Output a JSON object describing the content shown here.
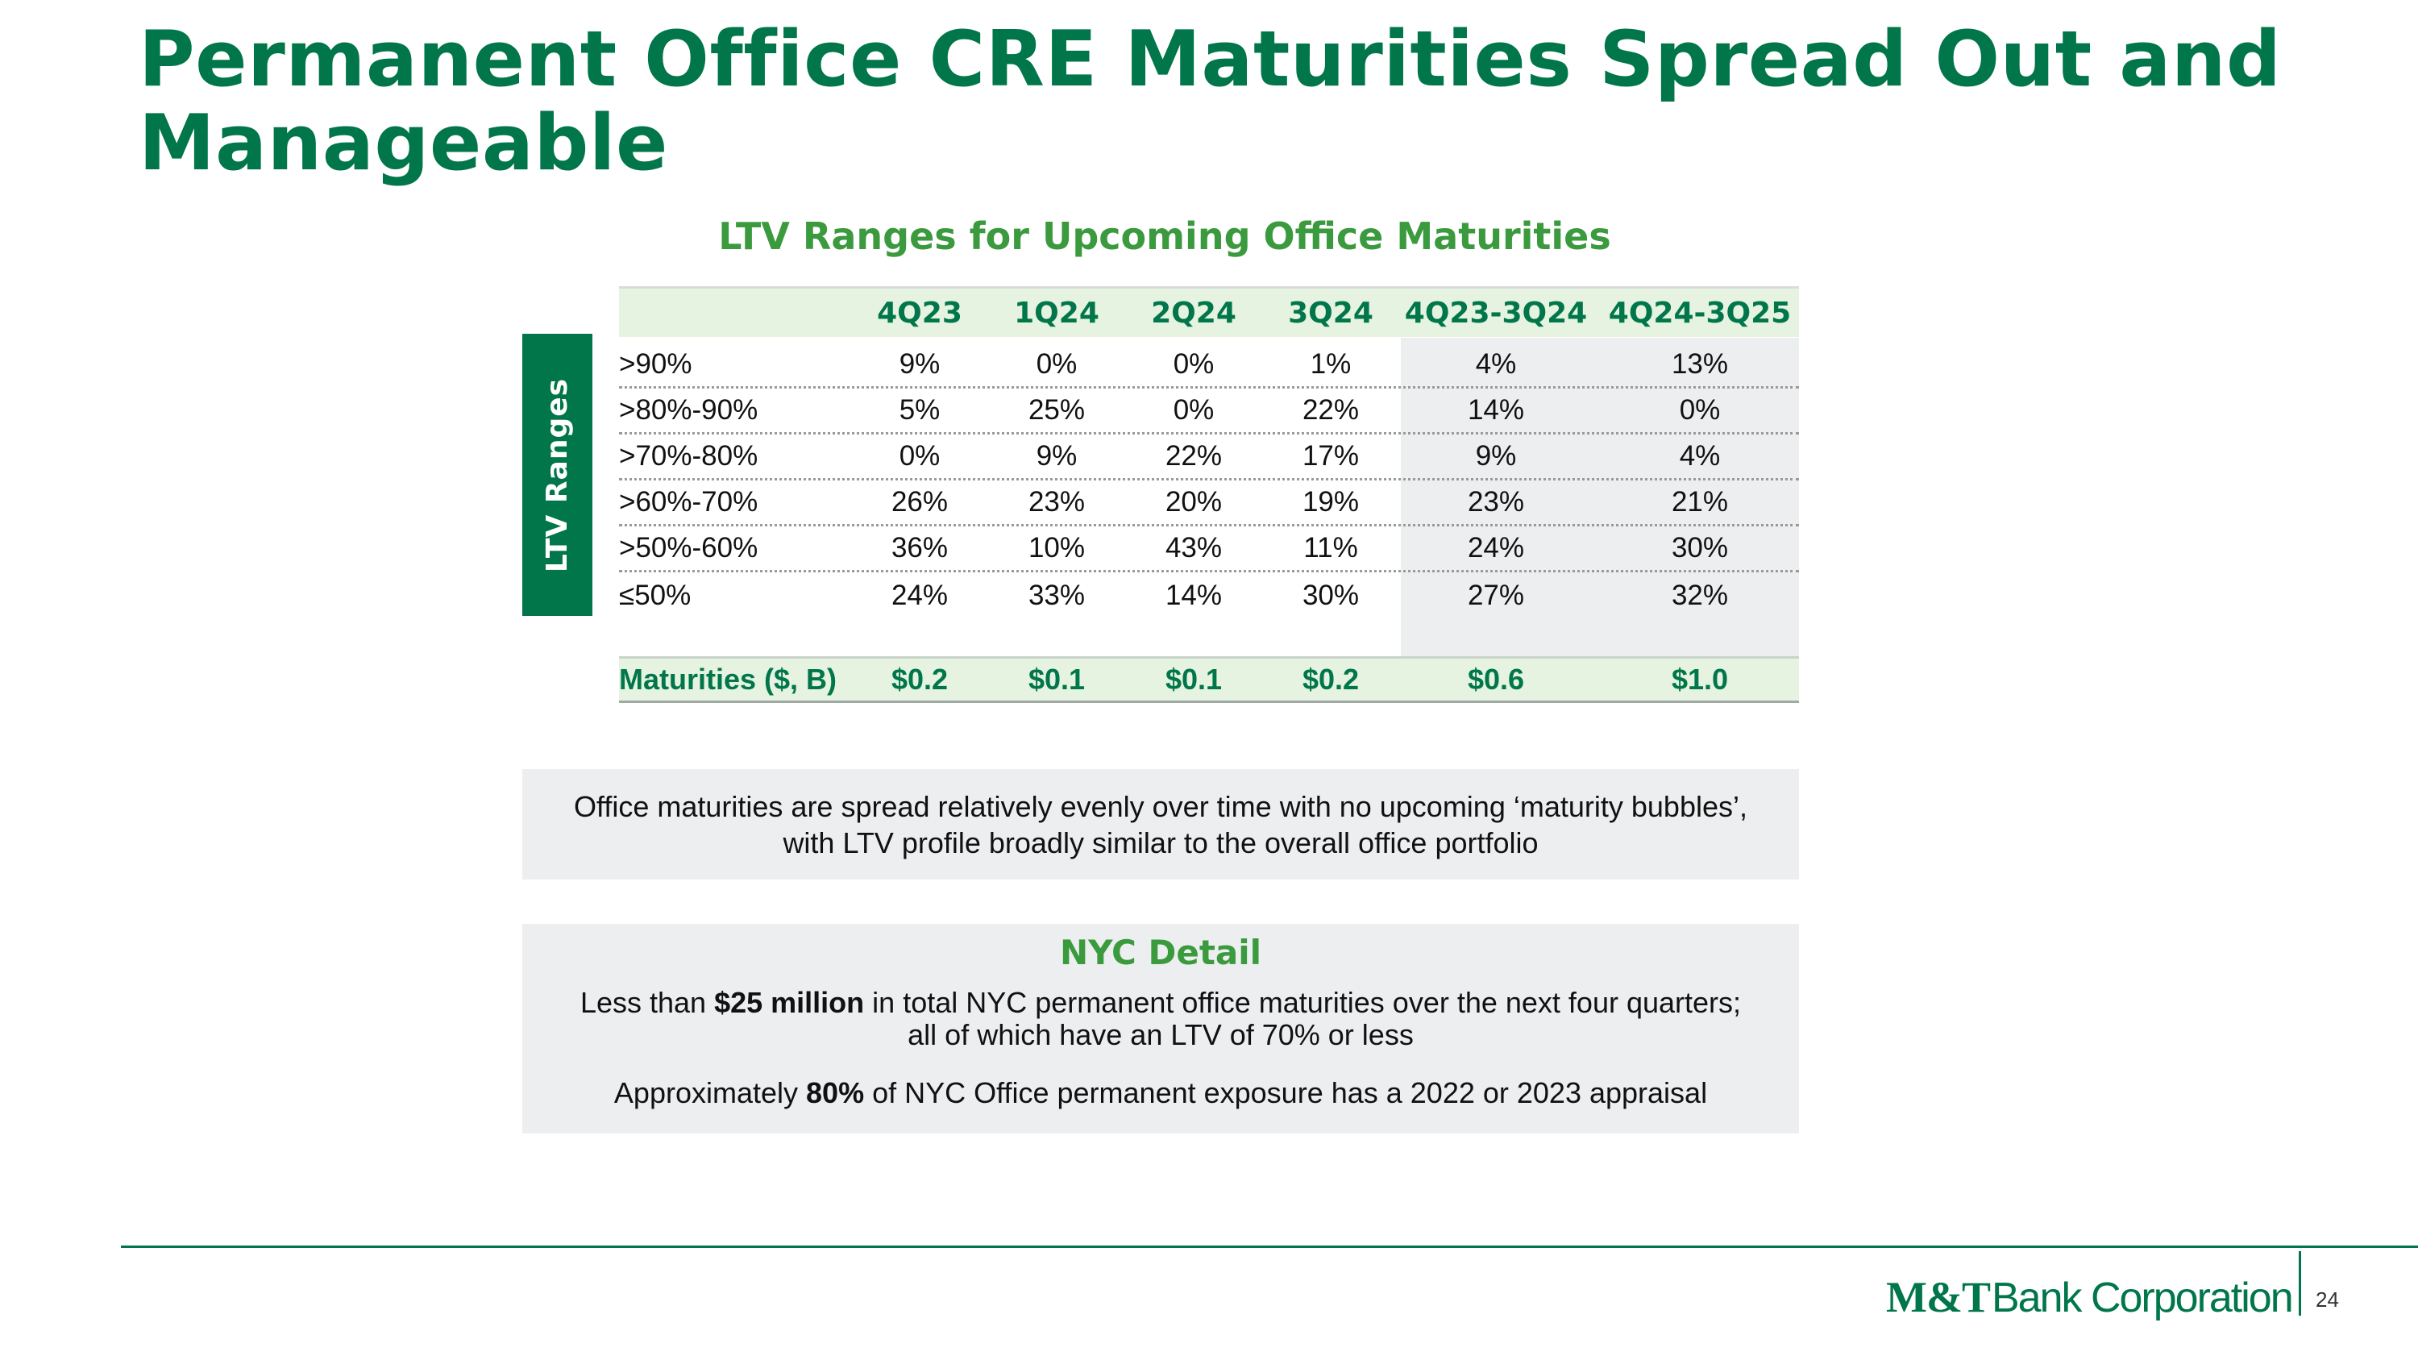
{
  "title_line1": "Permanent Office CRE Maturities Spread Out and",
  "title_line2": "Manageable",
  "subtitle": "LTV Ranges for Upcoming Office Maturities",
  "side_label": "LTV Ranges",
  "table": {
    "columns": [
      "4Q23",
      "1Q24",
      "2Q24",
      "3Q24",
      "4Q23-3Q24",
      "4Q24-3Q25"
    ],
    "rows": [
      {
        "label": ">90%",
        "values": [
          "9%",
          "0%",
          "0%",
          "1%",
          "4%",
          "13%"
        ]
      },
      {
        "label": ">80%-90%",
        "values": [
          "5%",
          "25%",
          "0%",
          "22%",
          "14%",
          "0%"
        ]
      },
      {
        "label": ">70%-80%",
        "values": [
          "0%",
          "9%",
          "22%",
          "17%",
          "9%",
          "4%"
        ]
      },
      {
        "label": ">60%-70%",
        "values": [
          "26%",
          "23%",
          "20%",
          "19%",
          "23%",
          "21%"
        ]
      },
      {
        "label": ">50%-60%",
        "values": [
          "36%",
          "10%",
          "43%",
          "11%",
          "24%",
          "30%"
        ]
      },
      {
        "label": "≤50%",
        "values": [
          "24%",
          "33%",
          "14%",
          "30%",
          "27%",
          "32%"
        ]
      }
    ],
    "total": {
      "label": "Maturities ($, B)",
      "values": [
        "$0.2",
        "$0.1",
        "$0.1",
        "$0.2",
        "$0.6",
        "$1.0"
      ]
    }
  },
  "note": {
    "line1": "Office maturities are spread relatively evenly over time with no upcoming ‘maturity bubbles’,",
    "line2": "with LTV profile broadly similar to the overall office portfolio"
  },
  "nyc": {
    "title": "NYC Detail",
    "p1_pre": "Less than ",
    "p1_bold": "$25 million",
    "p1_post": " in total NYC permanent office maturities over the next four quarters;",
    "p1_line2": "all of which have an LTV of 70% or less",
    "p2_pre": "Approximately ",
    "p2_bold": "80%",
    "p2_post": " of NYC Office permanent exposure has a 2022 or 2023 appraisal"
  },
  "footer": {
    "logo_mt": "M&T",
    "logo_rest": "Bank Corporation",
    "page_number": "24"
  },
  "colors": {
    "brand_green": "#00764a",
    "accent_green": "#3a9a3d",
    "panel_gray": "#eceeef",
    "header_tint": "#e5f3e0"
  }
}
